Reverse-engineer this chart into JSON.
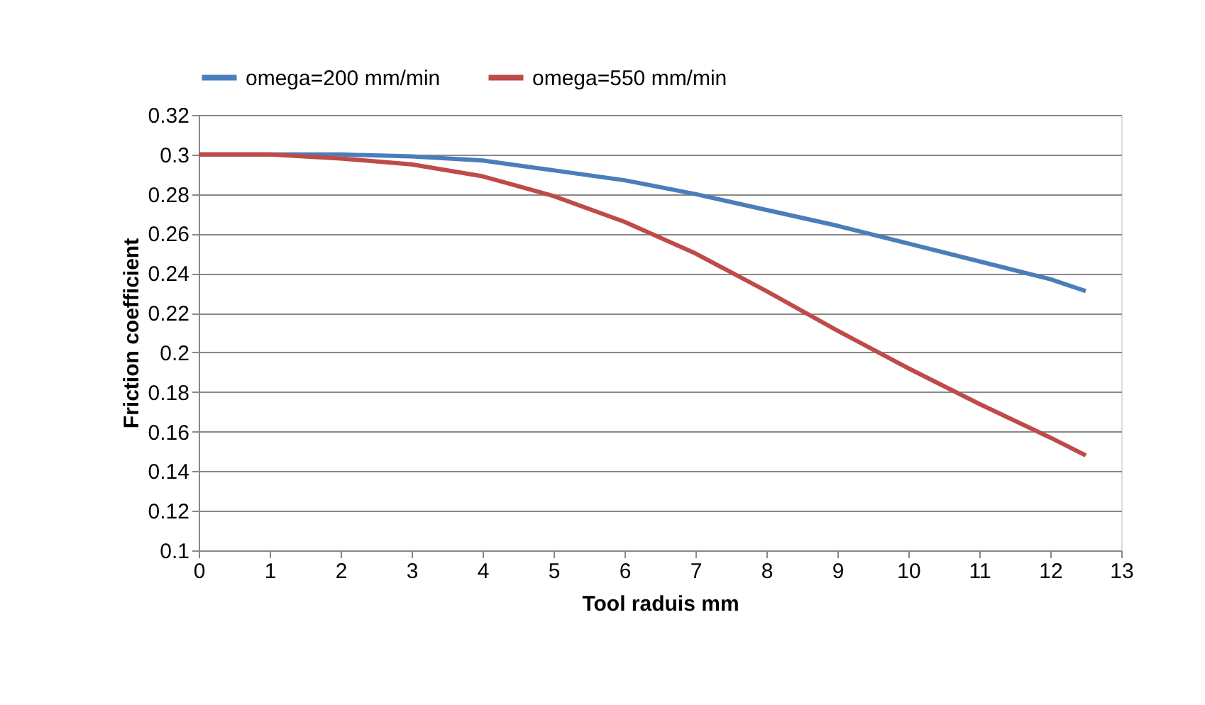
{
  "chart_data": {
    "type": "line",
    "xlabel": "Tool raduis mm",
    "ylabel": "Friction coefficient",
    "x": [
      0,
      1,
      2,
      3,
      4,
      5,
      6,
      7,
      8,
      9,
      10,
      11,
      12,
      12.5
    ],
    "series": [
      {
        "name": "omega=200 mm/min",
        "color": "#4a7ebb",
        "values": [
          0.3,
          0.3,
          0.3,
          0.299,
          0.297,
          0.292,
          0.287,
          0.28,
          0.272,
          0.264,
          0.255,
          0.246,
          0.237,
          0.231
        ]
      },
      {
        "name": "omega=550 mm/min",
        "color": "#be4b48",
        "values": [
          0.3,
          0.3,
          0.298,
          0.295,
          0.289,
          0.279,
          0.266,
          0.25,
          0.231,
          0.211,
          0.192,
          0.174,
          0.157,
          0.148
        ]
      }
    ],
    "xlim": [
      0,
      13
    ],
    "xticks": [
      0,
      1,
      2,
      3,
      4,
      5,
      6,
      7,
      8,
      9,
      10,
      11,
      12,
      13
    ],
    "ylim": [
      0.1,
      0.32
    ],
    "yticks": [
      0.1,
      0.12,
      0.14,
      0.16,
      0.18,
      0.2,
      0.22,
      0.24,
      0.26,
      0.28,
      0.3,
      0.32
    ],
    "grid": "y",
    "legend": "top",
    "marker": "none",
    "line_style": "solid"
  }
}
